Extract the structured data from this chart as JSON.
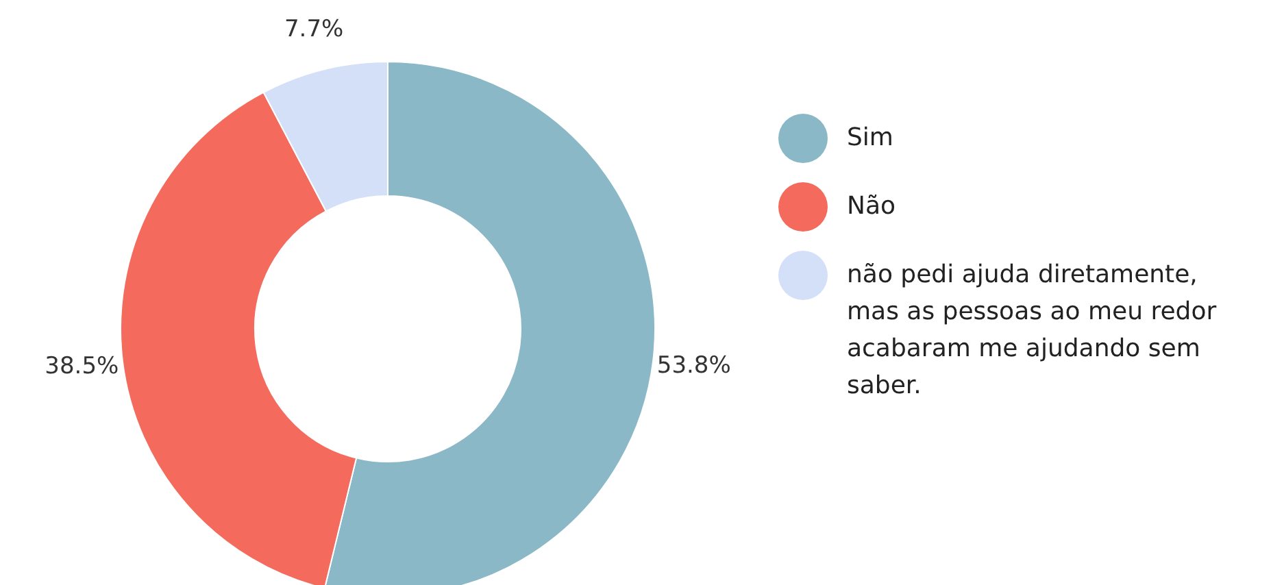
{
  "chart_data": {
    "type": "donut",
    "categories": [
      "Sim",
      "Não",
      "não pedi ajuda diretamente, mas as pessoas ao meu redor acabaram me ajudando sem saber."
    ],
    "values": [
      53.8,
      38.5,
      7.7
    ],
    "colors": [
      "#8ab8c6",
      "#f46b5d",
      "#d4e0f8"
    ],
    "value_labels": [
      "53.8%",
      "38.5%",
      "7.7%"
    ],
    "legend": "right"
  }
}
